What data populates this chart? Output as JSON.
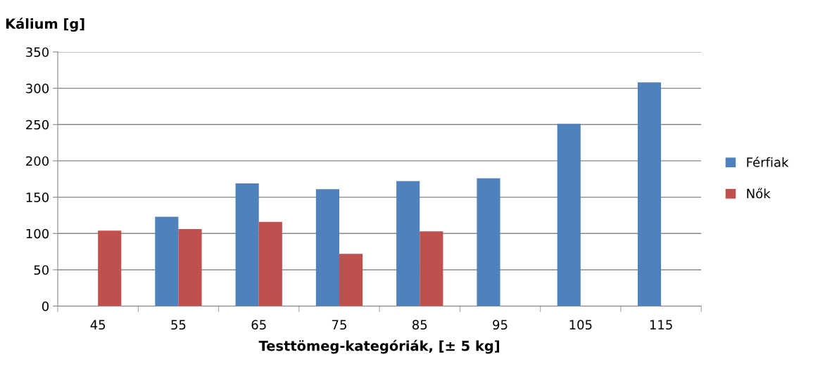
{
  "chart_data": {
    "type": "bar",
    "xlabel": "Testtömeg-kategóriák, [± 5 kg]",
    "ylabel": "Kálium [g]",
    "categories": [
      "45",
      "55",
      "65",
      "75",
      "85",
      "95",
      "105",
      "115"
    ],
    "series": [
      {
        "name": "Férfiak",
        "color": "#4f81bd",
        "values": [
          null,
          123,
          169,
          161,
          172,
          176,
          251,
          308
        ]
      },
      {
        "name": "Nők",
        "color": "#c0504d",
        "values": [
          104,
          106,
          116,
          72,
          103,
          null,
          null,
          null
        ]
      }
    ],
    "ylim": [
      0,
      350
    ],
    "yticks": [
      0,
      50,
      100,
      150,
      200,
      250,
      300,
      350
    ],
    "grid": "y",
    "legend": "right"
  }
}
